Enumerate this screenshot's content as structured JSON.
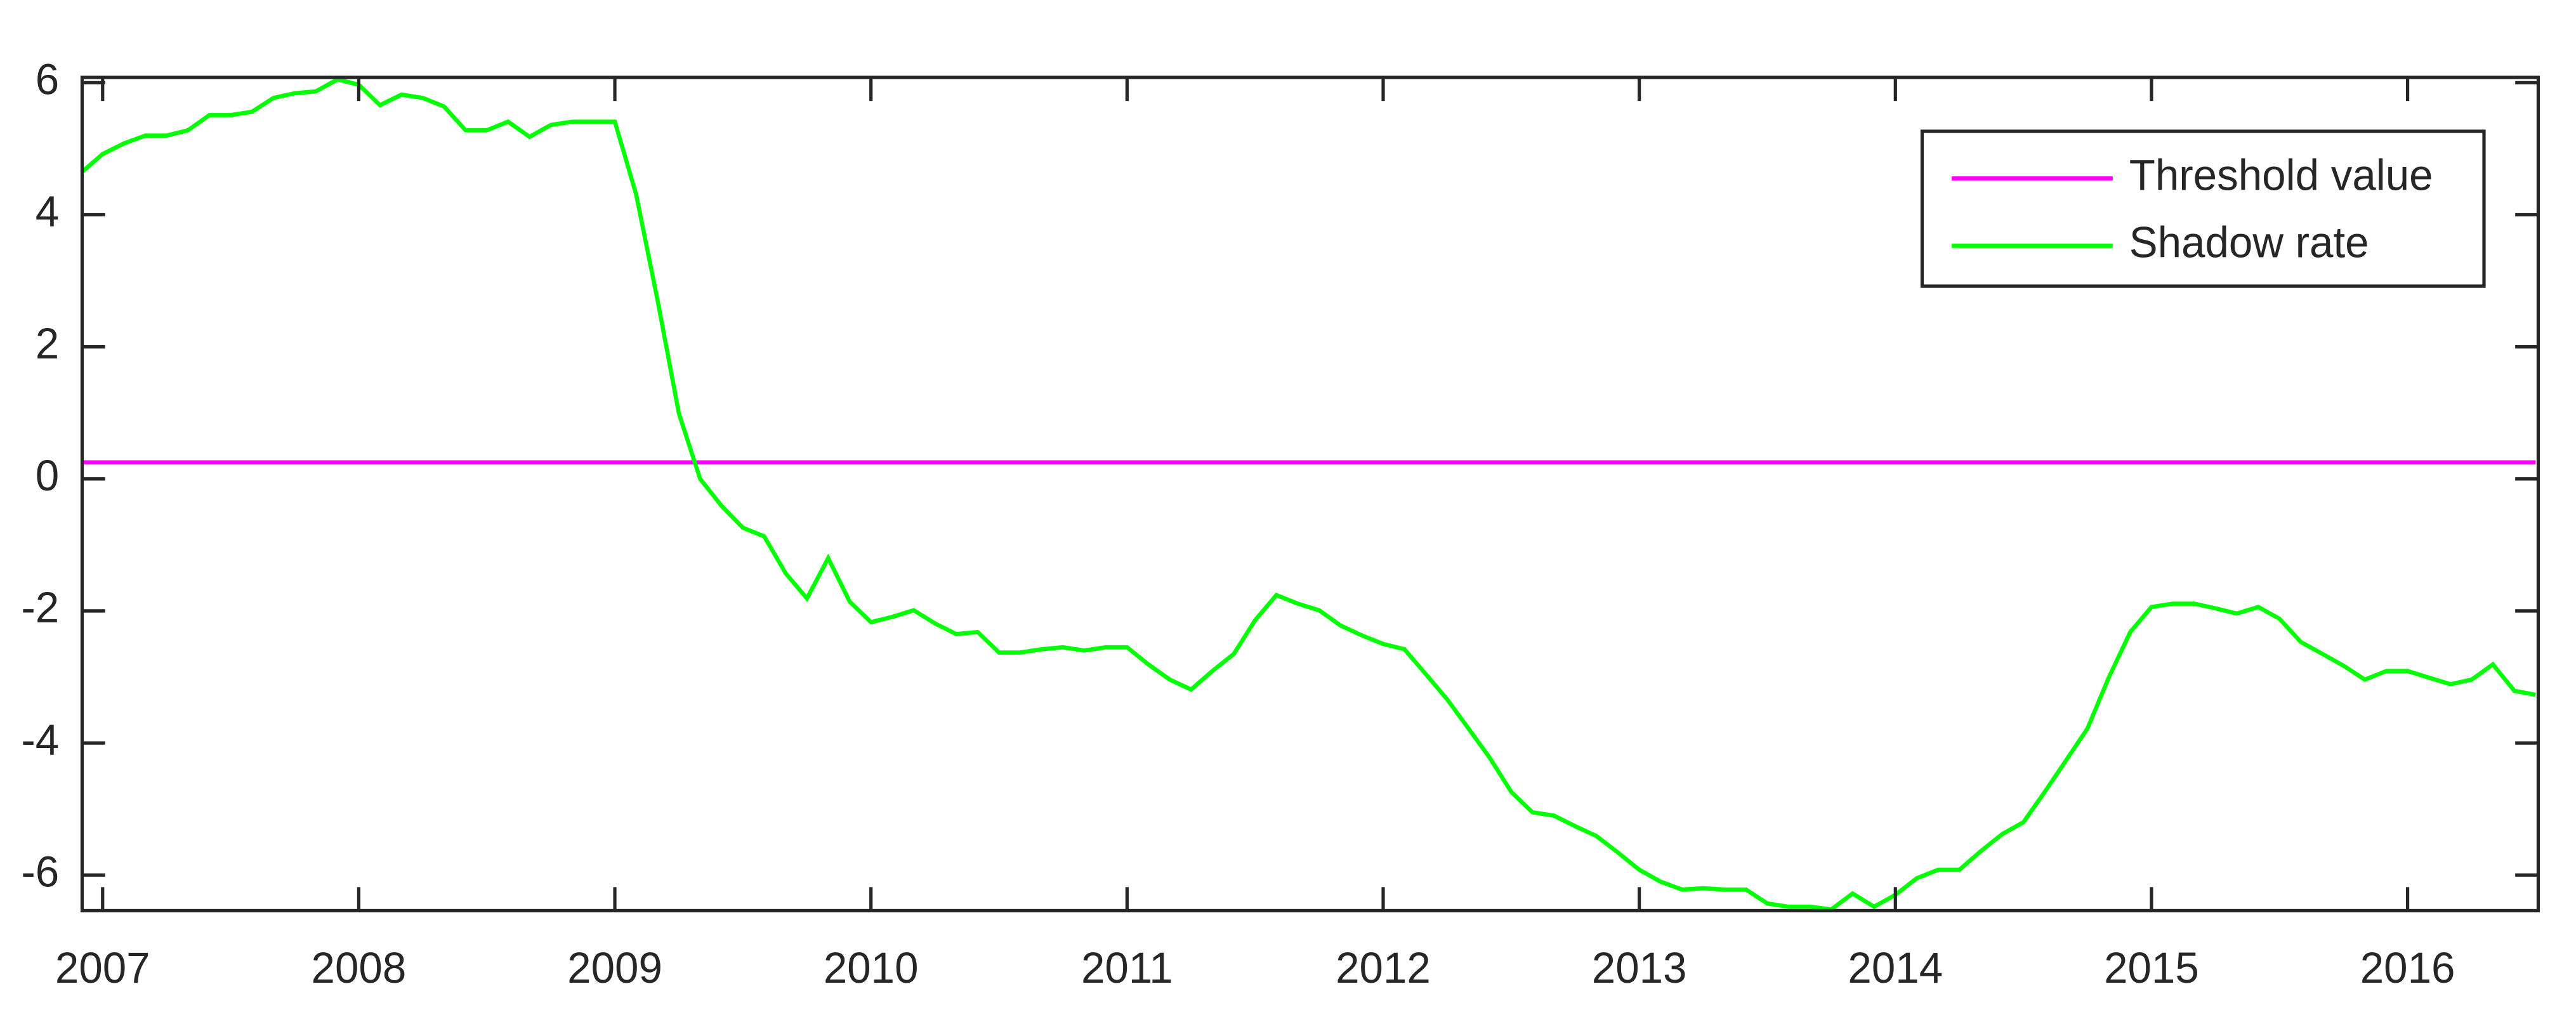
{
  "chart_data": {
    "type": "line",
    "x": [
      2006.917,
      2007.0,
      2007.083,
      2007.167,
      2007.25,
      2007.333,
      2007.417,
      2007.5,
      2007.583,
      2007.667,
      2007.75,
      2007.833,
      2007.917,
      2008.0,
      2008.083,
      2008.167,
      2008.25,
      2008.333,
      2008.417,
      2008.5,
      2008.583,
      2008.667,
      2008.75,
      2008.833,
      2008.917,
      2009.0,
      2009.083,
      2009.167,
      2009.25,
      2009.333,
      2009.417,
      2009.5,
      2009.583,
      2009.667,
      2009.75,
      2009.833,
      2009.917,
      2010.0,
      2010.083,
      2010.167,
      2010.25,
      2010.333,
      2010.417,
      2010.5,
      2010.583,
      2010.667,
      2010.75,
      2010.833,
      2010.917,
      2011.0,
      2011.083,
      2011.167,
      2011.25,
      2011.333,
      2011.417,
      2011.5,
      2011.583,
      2011.667,
      2011.75,
      2011.833,
      2011.917,
      2012.0,
      2012.083,
      2012.167,
      2012.25,
      2012.333,
      2012.417,
      2012.5,
      2012.583,
      2012.667,
      2012.75,
      2012.833,
      2012.917,
      2013.0,
      2013.083,
      2013.167,
      2013.25,
      2013.333,
      2013.417,
      2013.5,
      2013.583,
      2013.667,
      2013.75,
      2013.833,
      2013.917,
      2014.0,
      2014.083,
      2014.167,
      2014.25,
      2014.333,
      2014.417,
      2014.5,
      2014.583,
      2014.667,
      2014.75,
      2014.833,
      2014.917,
      2015.0,
      2015.083,
      2015.167,
      2015.25,
      2015.333,
      2015.417,
      2015.5,
      2015.583,
      2015.667,
      2015.75,
      2015.833,
      2015.917,
      2016.0,
      2016.083,
      2016.167,
      2016.25,
      2016.333,
      2016.417,
      2016.5
    ],
    "series": [
      {
        "name": "Threshold value",
        "color": "#ff00ff",
        "values": [
          0.25,
          0.25,
          0.25,
          0.25,
          0.25,
          0.25,
          0.25,
          0.25,
          0.25,
          0.25,
          0.25,
          0.25,
          0.25,
          0.25,
          0.25,
          0.25,
          0.25,
          0.25,
          0.25,
          0.25,
          0.25,
          0.25,
          0.25,
          0.25,
          0.25,
          0.25,
          0.25,
          0.25,
          0.25,
          0.25,
          0.25,
          0.25,
          0.25,
          0.25,
          0.25,
          0.25,
          0.25,
          0.25,
          0.25,
          0.25,
          0.25,
          0.25,
          0.25,
          0.25,
          0.25,
          0.25,
          0.25,
          0.25,
          0.25,
          0.25,
          0.25,
          0.25,
          0.25,
          0.25,
          0.25,
          0.25,
          0.25,
          0.25,
          0.25,
          0.25,
          0.25,
          0.25,
          0.25,
          0.25,
          0.25,
          0.25,
          0.25,
          0.25,
          0.25,
          0.25,
          0.25,
          0.25,
          0.25,
          0.25,
          0.25,
          0.25,
          0.25,
          0.25,
          0.25,
          0.25,
          0.25,
          0.25,
          0.25,
          0.25,
          0.25,
          0.25,
          0.25,
          0.25,
          0.25,
          0.25,
          0.25,
          0.25,
          0.25,
          0.25,
          0.25,
          0.25,
          0.25,
          0.25,
          0.25,
          0.25,
          0.25,
          0.25,
          0.25,
          0.25,
          0.25,
          0.25,
          0.25,
          0.25,
          0.25,
          0.25,
          0.25,
          0.25,
          0.25,
          0.25,
          0.25,
          0.25
        ]
      },
      {
        "name": "Shadow rate",
        "color": "#00ff00",
        "values": [
          4.64,
          4.92,
          5.08,
          5.2,
          5.2,
          5.28,
          5.51,
          5.51,
          5.56,
          5.77,
          5.84,
          5.87,
          6.05,
          5.97,
          5.66,
          5.82,
          5.77,
          5.64,
          5.28,
          5.28,
          5.41,
          5.18,
          5.36,
          5.41,
          5.41,
          5.41,
          4.31,
          2.7,
          0.99,
          0.0,
          -0.41,
          -0.74,
          -0.87,
          -1.43,
          -1.81,
          -1.2,
          -1.86,
          -2.17,
          -2.09,
          -1.99,
          -2.19,
          -2.35,
          -2.32,
          -2.63,
          -2.63,
          -2.58,
          -2.55,
          -2.6,
          -2.55,
          -2.55,
          -2.81,
          -3.04,
          -3.19,
          -2.91,
          -2.65,
          -2.14,
          -1.76,
          -1.89,
          -1.99,
          -2.22,
          -2.37,
          -2.5,
          -2.58,
          -2.96,
          -3.34,
          -3.78,
          -4.23,
          -4.74,
          -5.05,
          -5.1,
          -5.26,
          -5.41,
          -5.66,
          -5.92,
          -6.1,
          -6.22,
          -6.2,
          -6.22,
          -6.22,
          -6.43,
          -6.48,
          -6.48,
          -6.52,
          -6.28,
          -6.48,
          -6.3,
          -6.05,
          -5.92,
          -5.92,
          -5.64,
          -5.38,
          -5.2,
          -4.74,
          -4.26,
          -3.78,
          -3.01,
          -2.32,
          -1.94,
          -1.89,
          -1.89,
          -1.96,
          -2.04,
          -1.94,
          -2.12,
          -2.47,
          -2.65,
          -2.83,
          -3.04,
          -2.91,
          -2.91,
          -3.01,
          -3.11,
          -3.04,
          -2.81,
          -3.21,
          -3.27
        ]
      }
    ],
    "xlim": [
      2006.92,
      2016.51
    ],
    "ylim": [
      -6.54,
      6.08
    ],
    "xticks": [
      2007,
      2008,
      2009,
      2010,
      2011,
      2012,
      2013,
      2014,
      2015,
      2016
    ],
    "yticks": [
      -6,
      -4,
      -2,
      0,
      2,
      4,
      6
    ],
    "legend": "top-right"
  }
}
